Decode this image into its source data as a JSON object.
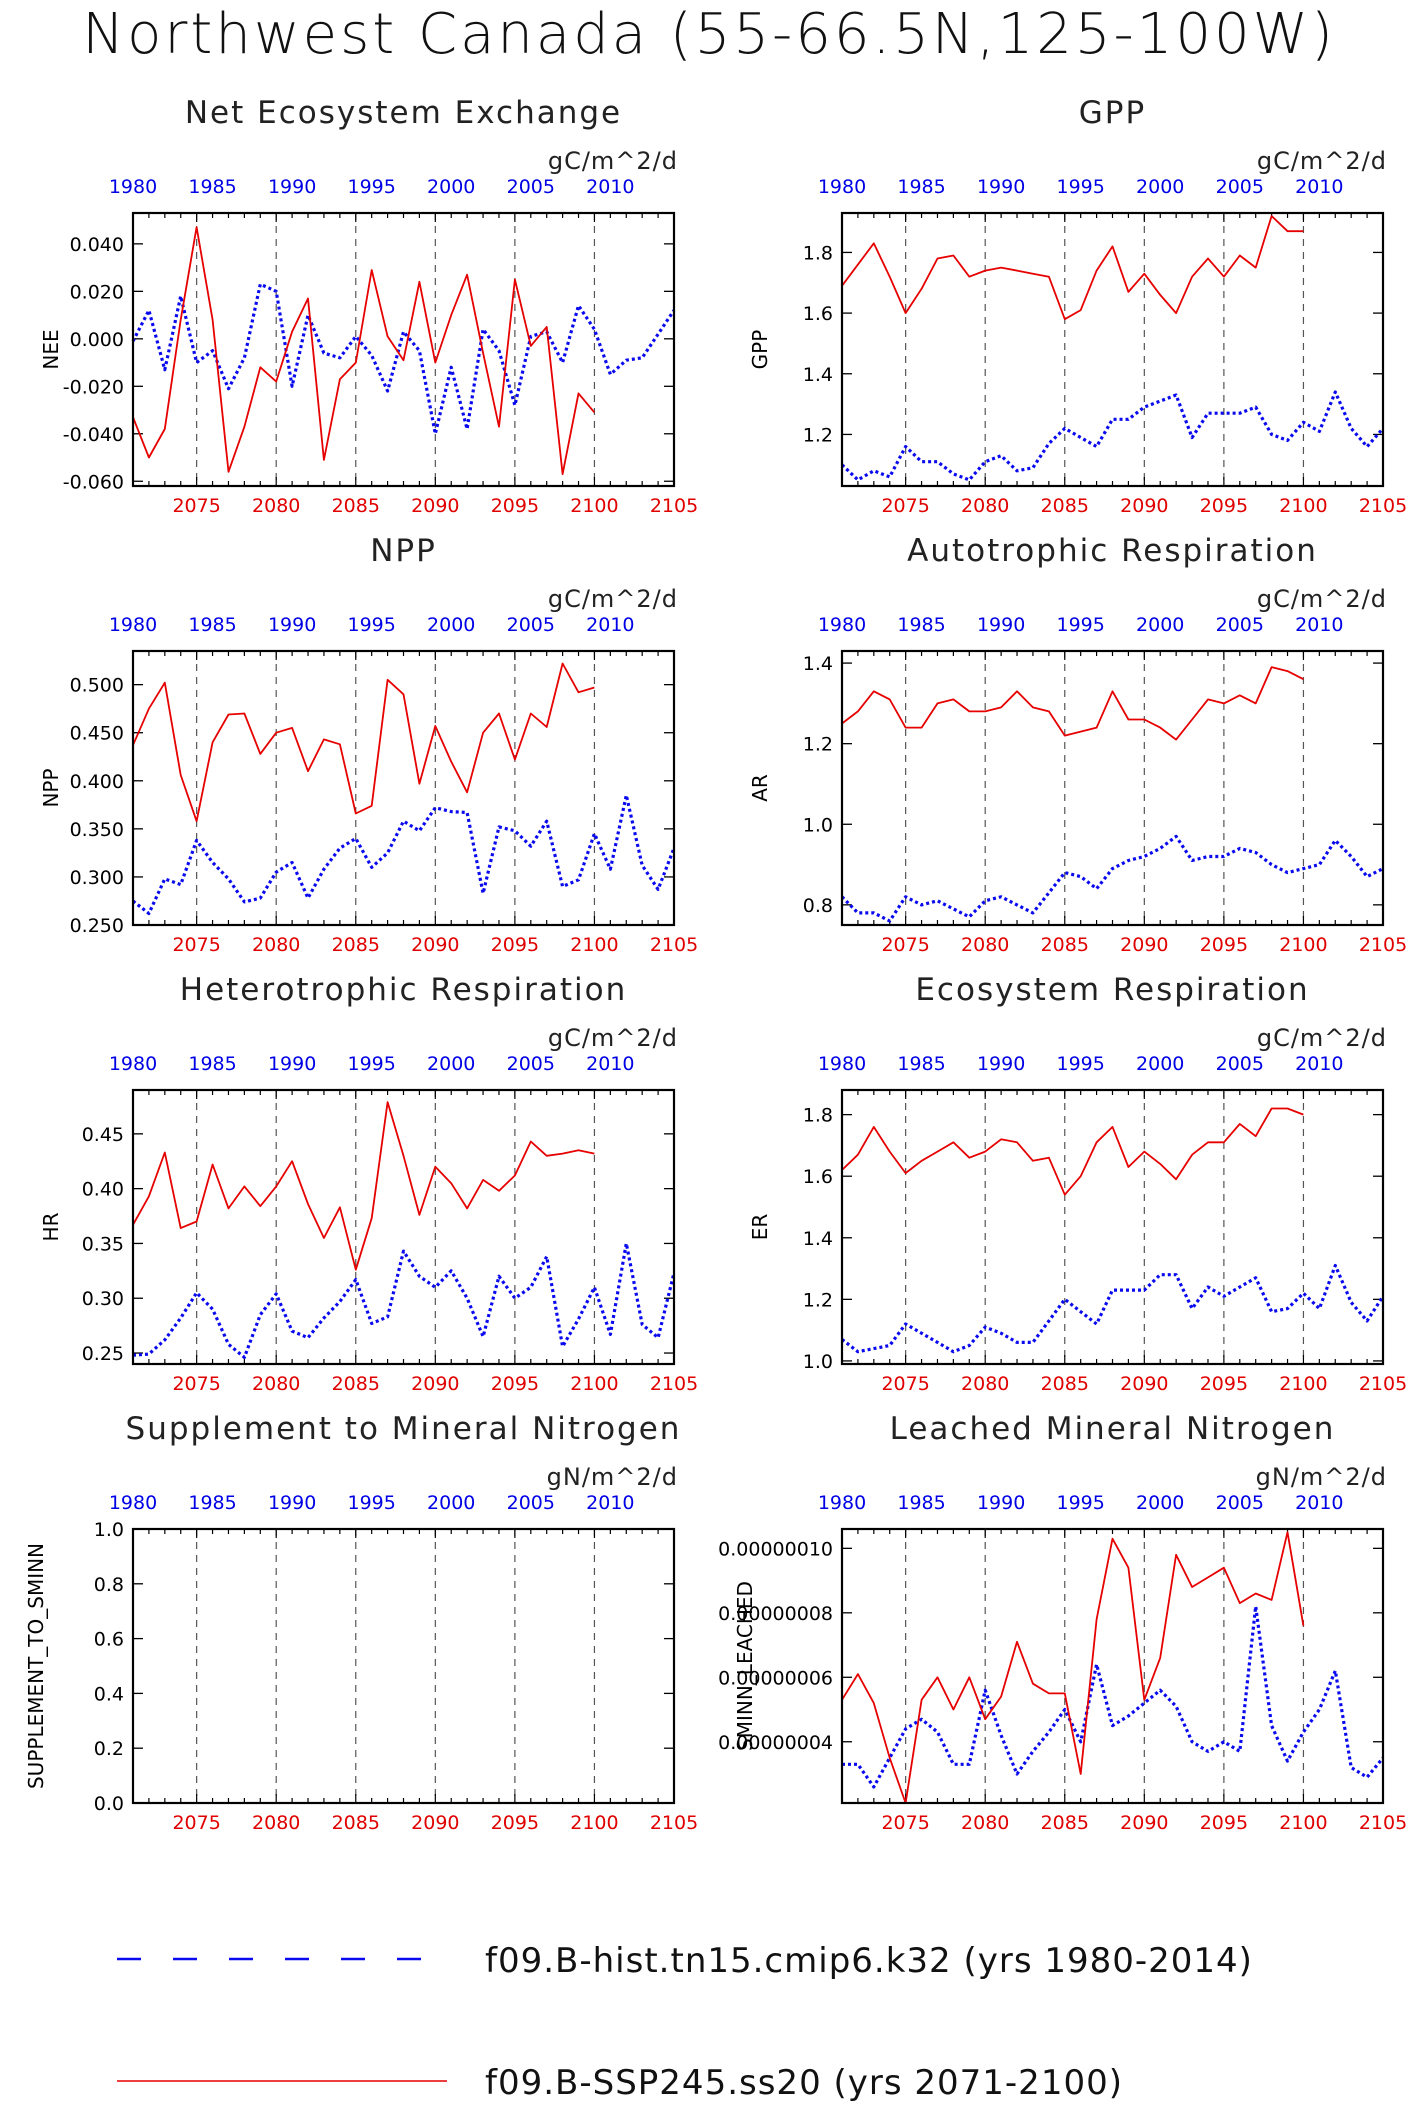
{
  "title": "Northwest Canada (55-66.5N,125-100W)",
  "colors": {
    "hist": "#0a0aee",
    "future": "#e60000",
    "grid": "#555555"
  },
  "legend": {
    "hist_label": "f09.B-hist.tn15.cmip6.k32 (yrs 1980-2014)",
    "future_label": "f09.B-SSP245.ss20 (yrs 2071-2100)"
  },
  "chart_data": [
    {
      "type": "line",
      "title": "Net Ecosystem Exchange",
      "units": "gC/m^2/d",
      "ylabel": "NEE",
      "xlim": [
        2071,
        2105
      ],
      "ylim": [
        -0.062,
        0.053
      ],
      "yticks": [
        0.04,
        0.02,
        0.0,
        -0.02,
        -0.04,
        -0.06
      ],
      "ytick_labels": [
        "0.040",
        "0.020",
        "0.000",
        "-0.020",
        "-0.040",
        "-0.060"
      ],
      "bottom_ticks": [
        "2075",
        "2080",
        "2085",
        "2090",
        "2095",
        "2100",
        "2105"
      ],
      "top_ticks": [
        "1980",
        "1985",
        "1990",
        "1995",
        "2000",
        "2005",
        "2010"
      ],
      "series": [
        {
          "name": "f09.B-hist.tn15.cmip6.k32",
          "x_start": 1980,
          "values": [
            -0.001,
            0.012,
            -0.013,
            0.018,
            -0.01,
            -0.005,
            -0.021,
            -0.008,
            0.023,
            0.02,
            -0.02,
            0.01,
            -0.006,
            -0.008,
            0.001,
            -0.007,
            -0.022,
            0.003,
            -0.005,
            -0.04,
            -0.012,
            -0.038,
            0.004,
            -0.005,
            -0.028,
            0.001,
            0.003,
            -0.01,
            0.014,
            0.004,
            -0.015,
            -0.009,
            -0.008,
            0.002,
            0.012
          ]
        },
        {
          "name": "f09.B-SSP245.ss20",
          "x_start": 2071,
          "values": [
            -0.033,
            -0.05,
            -0.038,
            0.008,
            0.047,
            0.008,
            -0.056,
            -0.037,
            -0.012,
            -0.018,
            0.003,
            0.017,
            -0.051,
            -0.017,
            -0.01,
            0.029,
            0.001,
            -0.009,
            0.024,
            -0.01,
            0.01,
            0.027,
            -0.006,
            -0.037,
            0.025,
            -0.003,
            0.005,
            -0.057,
            -0.023,
            -0.031
          ]
        }
      ]
    },
    {
      "type": "line",
      "title": "GPP",
      "units": "gC/m^2/d",
      "ylabel": "GPP",
      "xlim": [
        2071,
        2105
      ],
      "ylim": [
        1.03,
        1.93
      ],
      "yticks": [
        1.8,
        1.6,
        1.4,
        1.2
      ],
      "ytick_labels": [
        "1.8",
        "1.6",
        "1.4",
        "1.2"
      ],
      "bottom_ticks": [
        "2075",
        "2080",
        "2085",
        "2090",
        "2095",
        "2100",
        "2105"
      ],
      "top_ticks": [
        "1980",
        "1985",
        "1990",
        "1995",
        "2000",
        "2005",
        "2010"
      ],
      "series": [
        {
          "name": "f09.B-hist.tn15.cmip6.k32",
          "x_start": 1980,
          "values": [
            1.1,
            1.05,
            1.08,
            1.06,
            1.16,
            1.11,
            1.11,
            1.07,
            1.05,
            1.11,
            1.13,
            1.08,
            1.09,
            1.17,
            1.22,
            1.19,
            1.16,
            1.25,
            1.25,
            1.29,
            1.31,
            1.33,
            1.19,
            1.27,
            1.27,
            1.27,
            1.29,
            1.2,
            1.18,
            1.24,
            1.21,
            1.34,
            1.22,
            1.16,
            1.22
          ]
        },
        {
          "name": "f09.B-SSP245.ss20",
          "x_start": 2071,
          "values": [
            1.69,
            1.76,
            1.83,
            1.72,
            1.6,
            1.68,
            1.78,
            1.79,
            1.72,
            1.74,
            1.75,
            1.74,
            1.73,
            1.72,
            1.58,
            1.61,
            1.74,
            1.82,
            1.67,
            1.73,
            1.66,
            1.6,
            1.72,
            1.78,
            1.72,
            1.79,
            1.75,
            1.92,
            1.87,
            1.87
          ]
        }
      ]
    },
    {
      "type": "line",
      "title": "NPP",
      "units": "gC/m^2/d",
      "ylabel": "NPP",
      "xlim": [
        2071,
        2105
      ],
      "ylim": [
        0.25,
        0.535
      ],
      "yticks": [
        0.5,
        0.45,
        0.4,
        0.35,
        0.3,
        0.25
      ],
      "ytick_labels": [
        "0.500",
        "0.450",
        "0.400",
        "0.350",
        "0.300",
        "0.250"
      ],
      "bottom_ticks": [
        "2075",
        "2080",
        "2085",
        "2090",
        "2095",
        "2100",
        "2105"
      ],
      "top_ticks": [
        "1980",
        "1985",
        "1990",
        "1995",
        "2000",
        "2005",
        "2010"
      ],
      "series": [
        {
          "name": "f09.B-hist.tn15.cmip6.k32",
          "x_start": 1980,
          "values": [
            0.275,
            0.262,
            0.298,
            0.292,
            0.338,
            0.315,
            0.298,
            0.274,
            0.278,
            0.305,
            0.315,
            0.278,
            0.308,
            0.33,
            0.34,
            0.31,
            0.325,
            0.358,
            0.348,
            0.372,
            0.368,
            0.367,
            0.283,
            0.352,
            0.348,
            0.332,
            0.358,
            0.29,
            0.297,
            0.345,
            0.308,
            0.385,
            0.312,
            0.287,
            0.33
          ]
        },
        {
          "name": "f09.B-SSP245.ss20",
          "x_start": 2071,
          "values": [
            0.437,
            0.475,
            0.502,
            0.406,
            0.358,
            0.44,
            0.469,
            0.47,
            0.428,
            0.45,
            0.455,
            0.41,
            0.443,
            0.438,
            0.366,
            0.374,
            0.505,
            0.49,
            0.397,
            0.457,
            0.42,
            0.388,
            0.45,
            0.47,
            0.422,
            0.47,
            0.456,
            0.522,
            0.492,
            0.497
          ]
        }
      ]
    },
    {
      "type": "line",
      "title": "Autotrophic Respiration",
      "units": "gC/m^2/d",
      "ylabel": "AR",
      "xlim": [
        2071,
        2105
      ],
      "ylim": [
        0.75,
        1.43
      ],
      "yticks": [
        1.4,
        1.2,
        1.0,
        0.8
      ],
      "ytick_labels": [
        "1.4",
        "1.2",
        "1.0",
        "0.8"
      ],
      "bottom_ticks": [
        "2075",
        "2080",
        "2085",
        "2090",
        "2095",
        "2100",
        "2105"
      ],
      "top_ticks": [
        "1980",
        "1985",
        "1990",
        "1995",
        "2000",
        "2005",
        "2010"
      ],
      "series": [
        {
          "name": "f09.B-hist.tn15.cmip6.k32",
          "x_start": 1980,
          "values": [
            0.82,
            0.78,
            0.78,
            0.76,
            0.82,
            0.8,
            0.81,
            0.79,
            0.77,
            0.81,
            0.82,
            0.8,
            0.78,
            0.83,
            0.88,
            0.87,
            0.84,
            0.89,
            0.91,
            0.92,
            0.94,
            0.97,
            0.91,
            0.92,
            0.92,
            0.94,
            0.93,
            0.9,
            0.88,
            0.89,
            0.9,
            0.96,
            0.92,
            0.87,
            0.89
          ]
        },
        {
          "name": "f09.B-SSP245.ss20",
          "x_start": 2071,
          "values": [
            1.25,
            1.28,
            1.33,
            1.31,
            1.24,
            1.24,
            1.3,
            1.31,
            1.28,
            1.28,
            1.29,
            1.33,
            1.29,
            1.28,
            1.22,
            1.23,
            1.24,
            1.33,
            1.26,
            1.26,
            1.24,
            1.21,
            1.26,
            1.31,
            1.3,
            1.32,
            1.3,
            1.39,
            1.38,
            1.36
          ]
        }
      ]
    },
    {
      "type": "line",
      "title": "Heterotrophic Respiration",
      "units": "gC/m^2/d",
      "ylabel": "HR",
      "xlim": [
        2071,
        2105
      ],
      "ylim": [
        0.24,
        0.49
      ],
      "yticks": [
        0.45,
        0.4,
        0.35,
        0.3,
        0.25
      ],
      "ytick_labels": [
        "0.45",
        "0.40",
        "0.35",
        "0.30",
        "0.25"
      ],
      "bottom_ticks": [
        "2075",
        "2080",
        "2085",
        "2090",
        "2095",
        "2100",
        "2105"
      ],
      "top_ticks": [
        "1980",
        "1985",
        "1990",
        "1995",
        "2000",
        "2005",
        "2010"
      ],
      "series": [
        {
          "name": "f09.B-hist.tn15.cmip6.k32",
          "x_start": 1980,
          "values": [
            0.248,
            0.249,
            0.262,
            0.282,
            0.305,
            0.29,
            0.258,
            0.246,
            0.285,
            0.304,
            0.27,
            0.264,
            0.282,
            0.297,
            0.317,
            0.277,
            0.283,
            0.343,
            0.32,
            0.31,
            0.325,
            0.3,
            0.265,
            0.32,
            0.3,
            0.31,
            0.338,
            0.256,
            0.281,
            0.31,
            0.267,
            0.35,
            0.276,
            0.264,
            0.323
          ]
        },
        {
          "name": "f09.B-SSP245.ss20",
          "x_start": 2071,
          "values": [
            0.367,
            0.393,
            0.433,
            0.364,
            0.37,
            0.422,
            0.382,
            0.402,
            0.384,
            0.402,
            0.425,
            0.386,
            0.355,
            0.383,
            0.326,
            0.373,
            0.479,
            0.43,
            0.376,
            0.42,
            0.405,
            0.382,
            0.408,
            0.398,
            0.412,
            0.443,
            0.43,
            0.432,
            0.435,
            0.432
          ]
        }
      ]
    },
    {
      "type": "line",
      "title": "Ecosystem Respiration",
      "units": "gC/m^2/d",
      "ylabel": "ER",
      "xlim": [
        2071,
        2105
      ],
      "ylim": [
        0.99,
        1.88
      ],
      "yticks": [
        1.8,
        1.6,
        1.4,
        1.2,
        1.0
      ],
      "ytick_labels": [
        "1.8",
        "1.6",
        "1.4",
        "1.2",
        "1.0"
      ],
      "bottom_ticks": [
        "2075",
        "2080",
        "2085",
        "2090",
        "2095",
        "2100",
        "2105"
      ],
      "top_ticks": [
        "1980",
        "1985",
        "1990",
        "1995",
        "2000",
        "2005",
        "2010"
      ],
      "series": [
        {
          "name": "f09.B-hist.tn15.cmip6.k32",
          "x_start": 1980,
          "values": [
            1.07,
            1.03,
            1.04,
            1.05,
            1.12,
            1.09,
            1.06,
            1.03,
            1.05,
            1.11,
            1.09,
            1.06,
            1.06,
            1.13,
            1.2,
            1.16,
            1.12,
            1.23,
            1.23,
            1.23,
            1.28,
            1.28,
            1.17,
            1.24,
            1.21,
            1.24,
            1.27,
            1.16,
            1.17,
            1.22,
            1.17,
            1.31,
            1.19,
            1.13,
            1.21
          ]
        },
        {
          "name": "f09.B-SSP245.ss20",
          "x_start": 2071,
          "values": [
            1.62,
            1.67,
            1.76,
            1.68,
            1.61,
            1.65,
            1.68,
            1.71,
            1.66,
            1.68,
            1.72,
            1.71,
            1.65,
            1.66,
            1.54,
            1.6,
            1.71,
            1.76,
            1.63,
            1.68,
            1.64,
            1.59,
            1.67,
            1.71,
            1.71,
            1.77,
            1.73,
            1.82,
            1.82,
            1.8
          ]
        }
      ]
    },
    {
      "type": "line",
      "title": "Supplement to Mineral Nitrogen",
      "units": "gN/m^2/d",
      "ylabel": "SUPPLEMENT_TO_SMINN",
      "xlim": [
        2071,
        2105
      ],
      "ylim": [
        0.0,
        1.0
      ],
      "yticks": [
        1.0,
        0.8,
        0.6,
        0.4,
        0.2,
        0.0
      ],
      "ytick_labels": [
        "1.0",
        "0.8",
        "0.6",
        "0.4",
        "0.2",
        "0.0"
      ],
      "bottom_ticks": [
        "2075",
        "2080",
        "2085",
        "2090",
        "2095",
        "2100",
        "2105"
      ],
      "top_ticks": [
        "1980",
        "1985",
        "1990",
        "1995",
        "2000",
        "2005",
        "2010"
      ],
      "series": []
    },
    {
      "type": "line",
      "title": "Leached Mineral Nitrogen",
      "units": "gN/m^2/d",
      "ylabel": "SMINN_LEACHED",
      "xlim": [
        2071,
        2105
      ],
      "ylim": [
        2.1e-08,
        1.06e-07
      ],
      "yticks": [
        1e-07,
        8e-08,
        6e-08,
        4e-08
      ],
      "ytick_labels": [
        "0.00000010",
        "0.00000008",
        "0.00000006",
        "0.00000004"
      ],
      "bottom_ticks": [
        "2075",
        "2080",
        "2085",
        "2090",
        "2095",
        "2100",
        "2105"
      ],
      "top_ticks": [
        "1980",
        "1985",
        "1990",
        "1995",
        "2000",
        "2005",
        "2010"
      ],
      "series": [
        {
          "name": "f09.B-hist.tn15.cmip6.k32",
          "x_start": 1980,
          "values": [
            3.3e-08,
            3.3e-08,
            2.6e-08,
            3.5e-08,
            4.4e-08,
            4.7e-08,
            4.3e-08,
            3.3e-08,
            3.3e-08,
            5.6e-08,
            4.2e-08,
            3e-08,
            3.7e-08,
            4.3e-08,
            5e-08,
            4e-08,
            6.4e-08,
            4.5e-08,
            4.8e-08,
            5.2e-08,
            5.6e-08,
            5.1e-08,
            4e-08,
            3.7e-08,
            4e-08,
            3.7e-08,
            8.2e-08,
            4.5e-08,
            3.4e-08,
            4.3e-08,
            5e-08,
            6.2e-08,
            3.2e-08,
            2.9e-08,
            3.5e-08
          ]
        },
        {
          "name": "f09.B-SSP245.ss20",
          "x_start": 2071,
          "values": [
            5.3e-08,
            6.1e-08,
            5.2e-08,
            3.5e-08,
            2.1e-08,
            5.3e-08,
            6e-08,
            5e-08,
            6e-08,
            4.7e-08,
            5.4e-08,
            7.1e-08,
            5.8e-08,
            5.5e-08,
            5.5e-08,
            3e-08,
            7.8e-08,
            1.03e-07,
            9.4e-08,
            5.3e-08,
            6.6e-08,
            9.8e-08,
            8.8e-08,
            9.1e-08,
            9.4e-08,
            8.3e-08,
            8.6e-08,
            8.4e-08,
            1.05e-07,
            7.6e-08
          ]
        }
      ]
    }
  ]
}
